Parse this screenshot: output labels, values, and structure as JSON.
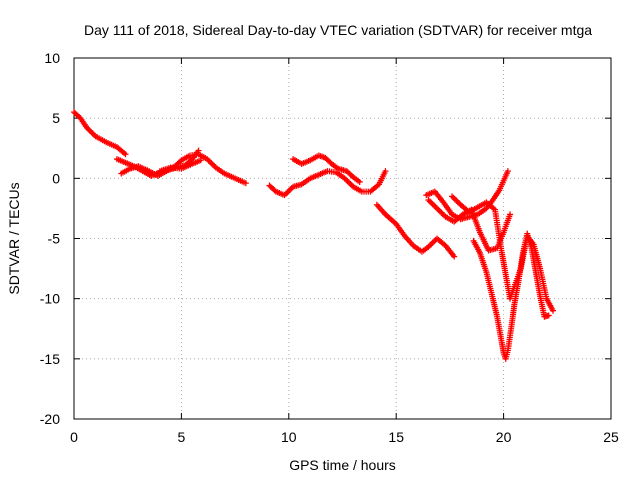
{
  "chart_data": {
    "type": "scatter",
    "title": "Day 111 of 2018, Sidereal Day-to-day VTEC variation (SDTVAR) for receiver mtga",
    "xlabel": "GPS time / hours",
    "ylabel": "SDTVAR / TECUs",
    "xlim": [
      0,
      25
    ],
    "ylim": [
      -20,
      10
    ],
    "xticks": [
      0,
      5,
      10,
      15,
      20,
      25
    ],
    "yticks": [
      10,
      5,
      0,
      -5,
      -10,
      -15,
      -20
    ],
    "grid": true,
    "marker": "plus",
    "color": "#ff0000",
    "series": [
      {
        "x": [
          0.0,
          0.3,
          0.6,
          1.0,
          1.5,
          2.0,
          2.4
        ],
        "y": [
          5.5,
          5.0,
          4.2,
          3.5,
          3.0,
          2.6,
          2.0
        ]
      },
      {
        "x": [
          2.0,
          2.4,
          2.8,
          3.2,
          3.6,
          4.0,
          4.4,
          4.8,
          5.2,
          5.5,
          5.8
        ],
        "y": [
          1.6,
          1.3,
          1.0,
          0.6,
          0.2,
          0.5,
          0.7,
          0.9,
          1.1,
          1.6,
          2.3
        ]
      },
      {
        "x": [
          2.2,
          2.6,
          3.0,
          3.5,
          3.9,
          4.3,
          4.7,
          5.0,
          5.4,
          5.8,
          6.2,
          6.6,
          7.0,
          7.5,
          8.0
        ],
        "y": [
          0.4,
          0.8,
          1.0,
          0.6,
          0.2,
          0.6,
          1.0,
          1.5,
          1.9,
          2.0,
          1.6,
          0.9,
          0.4,
          0.0,
          -0.4
        ]
      },
      {
        "x": [
          4.0,
          4.5,
          5.0,
          5.5,
          5.9
        ],
        "y": [
          0.6,
          0.9,
          0.8,
          1.2,
          1.5
        ]
      },
      {
        "x": [
          9.1,
          9.4,
          9.8,
          10.2,
          10.6,
          11.0,
          11.4,
          11.8,
          12.2,
          12.6,
          13.0,
          13.4,
          13.8,
          14.2,
          14.5
        ],
        "y": [
          -0.6,
          -1.1,
          -1.4,
          -0.7,
          -0.5,
          0.0,
          0.3,
          0.6,
          0.5,
          0.0,
          -0.7,
          -1.1,
          -1.1,
          -0.5,
          0.6
        ]
      },
      {
        "x": [
          10.2,
          10.6,
          11.0,
          11.4,
          11.7,
          12.0,
          12.3,
          12.7,
          13.0,
          13.3
        ],
        "y": [
          1.6,
          1.2,
          1.5,
          1.9,
          1.7,
          1.2,
          0.8,
          0.6,
          0.1,
          -0.3
        ]
      },
      {
        "x": [
          14.1,
          14.5,
          15.0,
          15.4,
          15.8,
          16.2,
          16.5,
          16.9,
          17.3,
          17.7
        ],
        "y": [
          -2.2,
          -3.0,
          -3.8,
          -4.8,
          -5.6,
          -6.1,
          -5.7,
          -5.0,
          -5.6,
          -6.5
        ]
      },
      {
        "x": [
          16.4,
          16.8,
          17.2,
          17.6,
          18.0,
          18.4,
          18.8,
          19.2,
          19.5,
          19.8,
          20.0,
          20.2
        ],
        "y": [
          -1.4,
          -1.1,
          -2.0,
          -3.0,
          -3.4,
          -3.2,
          -3.0,
          -2.5,
          -1.8,
          -1.0,
          -0.2,
          0.6
        ]
      },
      {
        "x": [
          16.5,
          16.9,
          17.3,
          17.7,
          18.1,
          18.5,
          18.9,
          19.3,
          19.7,
          20.0,
          20.3
        ],
        "y": [
          -1.8,
          -2.5,
          -3.2,
          -3.6,
          -3.0,
          -2.6,
          -4.5,
          -6.0,
          -5.8,
          -4.5,
          -3.0
        ]
      },
      {
        "x": [
          17.6,
          18.0,
          18.4,
          18.8,
          19.2,
          19.6,
          19.9,
          20.1,
          20.3,
          20.5,
          20.8,
          21.1,
          21.4,
          21.7,
          22.0,
          22.3
        ],
        "y": [
          -1.5,
          -2.2,
          -2.8,
          -2.4,
          -2.0,
          -2.6,
          -6.0,
          -8.0,
          -10.0,
          -9.0,
          -7.5,
          -4.8,
          -5.5,
          -7.5,
          -10.0,
          -11.0
        ]
      },
      {
        "x": [
          18.6,
          18.9,
          19.2,
          19.5,
          19.7,
          19.85,
          20.0,
          20.1,
          20.2,
          20.35,
          20.5,
          20.7,
          20.9,
          21.1,
          21.3,
          21.5,
          21.7,
          21.9,
          22.1
        ],
        "y": [
          -5.2,
          -6.2,
          -7.8,
          -10.0,
          -11.5,
          -13.0,
          -14.5,
          -15.0,
          -14.3,
          -12.5,
          -10.5,
          -8.5,
          -6.2,
          -4.6,
          -5.8,
          -7.8,
          -9.8,
          -11.5,
          -11.4
        ]
      }
    ]
  }
}
